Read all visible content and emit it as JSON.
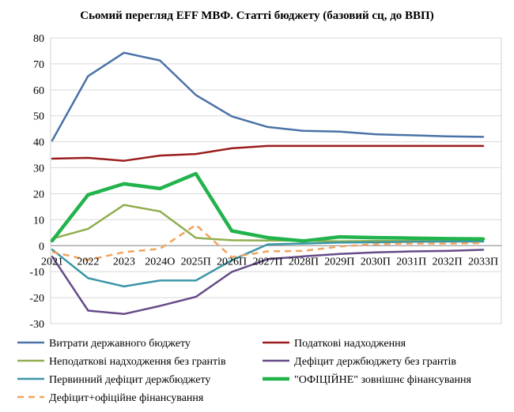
{
  "chart_data": {
    "type": "line",
    "title": "Сьомий перегляд EFF МВФ. Статті  бюджету (базовий сц, до ВВП)",
    "xlabel": "",
    "ylabel": "",
    "ylim": [
      -30,
      80
    ],
    "yticks": [
      -30,
      -20,
      -10,
      0,
      10,
      20,
      30,
      40,
      50,
      60,
      70,
      80
    ],
    "grid": true,
    "legend_position": "bottom",
    "categories": [
      "2021",
      "2022",
      "2023",
      "2024О",
      "2025П",
      "2026П",
      "2027П",
      "2028П",
      "2029П",
      "2030П",
      "2031П",
      "2032П",
      "2033П"
    ],
    "series": [
      {
        "name": "Витрати державного бюджету",
        "color": "#4a72a6",
        "width": 2.5,
        "dash": "",
        "values": [
          40.5,
          65.3,
          74.3,
          71.3,
          58,
          49.8,
          45.7,
          44.2,
          43.9,
          42.9,
          42.5,
          42.1,
          41.9
        ]
      },
      {
        "name": "Податкові надходження",
        "color": "#9b1c1c",
        "width": 2.5,
        "dash": "",
        "values": [
          33.5,
          33.8,
          32.7,
          34.7,
          35.3,
          37.5,
          38.4,
          38.4,
          38.4,
          38.4,
          38.4,
          38.4,
          38.4
        ]
      },
      {
        "name": "Неподаткові надходження без грантів",
        "color": "#8fae4f",
        "width": 2.5,
        "dash": "",
        "values": [
          2.7,
          6.5,
          15.7,
          13.2,
          3,
          2.1,
          2,
          1.9,
          1.7,
          1.8,
          1.8,
          1.8,
          1.8
        ]
      },
      {
        "name": "Дефіцит держбюджету без грантів",
        "color": "#654b88",
        "width": 2.5,
        "dash": "",
        "values": [
          -4.2,
          -25,
          -26.3,
          -23.2,
          -19.7,
          -10.1,
          -5.2,
          -4.1,
          -3.2,
          -2.6,
          -2.2,
          -2,
          -1.6
        ]
      },
      {
        "name": "Первинний дефіцит держбюджету",
        "color": "#3a96a6",
        "width": 2.5,
        "dash": "",
        "values": [
          -1.5,
          -12.5,
          -15.7,
          -13.4,
          -13.4,
          -5.6,
          0.5,
          0.8,
          1.2,
          1.3,
          1.5,
          1.6,
          1.6
        ]
      },
      {
        "name": "\"ОФІЦІЙНЕ\"  зовнішнє фінансування",
        "color": "#22b34d",
        "width": 4.5,
        "dash": "",
        "values": [
          1.9,
          19.6,
          23.8,
          22,
          27.7,
          5.7,
          3.1,
          1.8,
          3.4,
          3.1,
          2.9,
          2.7,
          2.6
        ]
      },
      {
        "name": "Дефіцит+офіційне фінансування",
        "color": "#f0a35e",
        "width": 2.5,
        "dash": "8 6",
        "values": [
          -2.4,
          -5.5,
          -2.5,
          -1.2,
          8,
          -4.4,
          -2.2,
          -2,
          -0.3,
          0.6,
          0.8,
          0.8,
          1
        ]
      }
    ]
  }
}
